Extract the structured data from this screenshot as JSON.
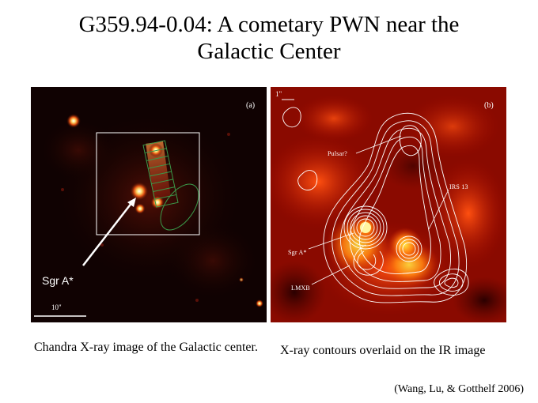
{
  "slide": {
    "title_line1": "G359.94-0.04: A cometary PWN near the",
    "title_line2": "Galactic Center"
  },
  "panel_a": {
    "label": "(a)",
    "sgr_label": "Sgr A*",
    "scale_label": "10\""
  },
  "panel_b": {
    "label": "(b)",
    "scale_label": "1\"",
    "pulsar_label": "Pulsar?",
    "irs13_label": "IRS 13",
    "sgr_label": "Sgr A*",
    "lmxb_label": "LMXB"
  },
  "captions": {
    "left": "Chandra X-ray image of the Galactic center.",
    "right": "X-ray contours overlaid on the IR image"
  },
  "citation": "(Wang, Lu, & Gotthelf 2006)",
  "colors": {
    "contour": "#ffffff",
    "box": "#ffffff",
    "region": "#3a9a4a"
  }
}
